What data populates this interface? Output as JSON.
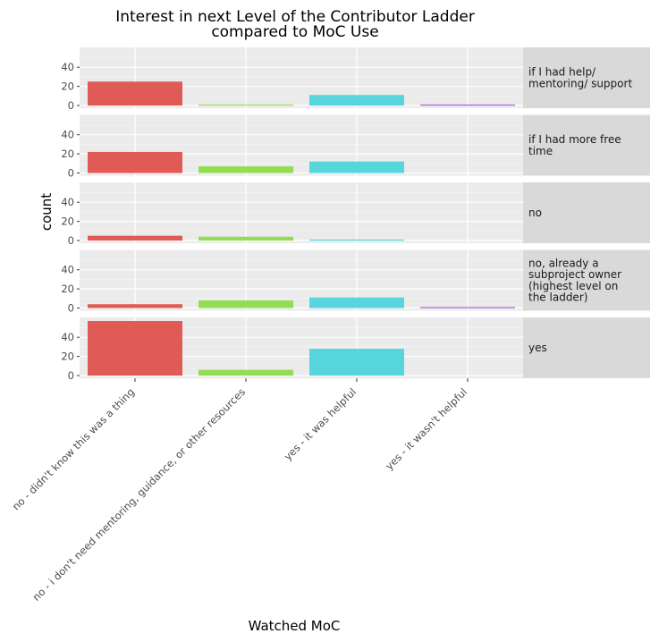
{
  "chart_data": {
    "type": "bar",
    "title": [
      "Interest in next Level of the Contributor Ladder",
      "compared to MoC Use"
    ],
    "xlabel": "Watched MoC",
    "ylabel": "count",
    "categories": [
      "no - didn't know this was a thing",
      "no - i don't need mentoring, guidance, or other resources",
      "yes - it was helpful",
      "yes - it wasn't helpful"
    ],
    "colors": [
      "#e05b55",
      "#93dd55",
      "#56d5dc",
      "#a65ce0"
    ],
    "ylim": [
      0,
      57
    ],
    "yticks": [
      0,
      20,
      40
    ],
    "grid": true,
    "panel_background": "#ebebeb",
    "strip_background": "#d9d9d9",
    "facets": [
      {
        "label": "if I had help/\nmentoring/ support",
        "values": [
          25,
          1,
          11,
          1
        ]
      },
      {
        "label": "if I had more free\ntime",
        "values": [
          22,
          7,
          12,
          0
        ]
      },
      {
        "label": "no",
        "values": [
          5,
          4,
          1,
          0
        ]
      },
      {
        "label": "no, already a\nsubproject owner\n(highest level on\nthe ladder)",
        "values": [
          4,
          8,
          11,
          1
        ]
      },
      {
        "label": "yes",
        "values": [
          57,
          6,
          28,
          0
        ]
      }
    ]
  }
}
